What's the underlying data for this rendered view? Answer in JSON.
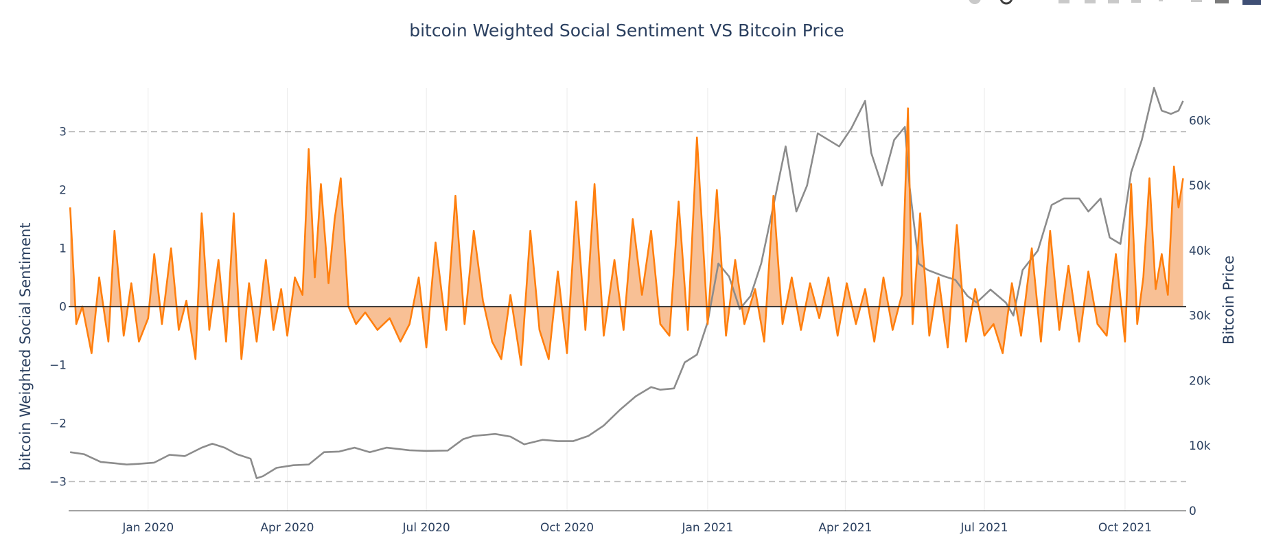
{
  "modebar": {
    "icons": [
      "camera-icon",
      "zoom-icon",
      "pan-icon",
      "zoom-in-icon",
      "zoom-out-icon",
      "autoscale-icon",
      "reset-axes-icon",
      "spike-icon",
      "hover-closest-icon",
      "hover-compare-icon",
      "plotly-logo-icon"
    ]
  },
  "colors": {
    "sentiment_line": "#ff7f0e",
    "sentiment_fill": "#f7b98a",
    "price_line": "#8c8c8c",
    "zero_line": "#2a2a2a",
    "ref_dash": "#bdbdbd",
    "grid": "#ebebeb",
    "text": "#2a3f5f"
  },
  "chart_data": {
    "type": "line",
    "title": "bitcoin Weighted Social Sentiment VS Bitcoin Price",
    "xlabel": "",
    "ylabel": "bitcoin Weighted Social Sentiment",
    "y2label": "Bitcoin Price",
    "x_range": [
      "2019-11-10",
      "2021-11-10"
    ],
    "x_ticks": [
      {
        "date": "2020-01-01",
        "label": "Jan 2020"
      },
      {
        "date": "2020-04-01",
        "label": "Apr 2020"
      },
      {
        "date": "2020-07-01",
        "label": "Jul 2020"
      },
      {
        "date": "2020-10-01",
        "label": "Oct 2020"
      },
      {
        "date": "2021-01-01",
        "label": "Jan 2021"
      },
      {
        "date": "2021-04-01",
        "label": "Apr 2021"
      },
      {
        "date": "2021-07-01",
        "label": "Jul 2021"
      },
      {
        "date": "2021-10-01",
        "label": "Oct 2021"
      }
    ],
    "y_range": [
      -3.5,
      3.75
    ],
    "y_ticks": [
      {
        "value": 3,
        "label": "3"
      },
      {
        "value": 2,
        "label": "2"
      },
      {
        "value": 1,
        "label": "1"
      },
      {
        "value": 0,
        "label": "0"
      },
      {
        "value": -1,
        "label": "−1"
      },
      {
        "value": -2,
        "label": "−2"
      },
      {
        "value": -3,
        "label": "−3"
      }
    ],
    "y2_range": [
      0,
      65000
    ],
    "y2_ticks": [
      {
        "value": 60000,
        "label": "60k"
      },
      {
        "value": 50000,
        "label": "50k"
      },
      {
        "value": 40000,
        "label": "40k"
      },
      {
        "value": 30000,
        "label": "30k"
      },
      {
        "value": 20000,
        "label": "20k"
      },
      {
        "value": 10000,
        "label": "10k"
      },
      {
        "value": 0,
        "label": "0"
      }
    ],
    "reference_lines": [
      3,
      -3
    ],
    "series": [
      {
        "name": "bitcoin Weighted Social Sentiment",
        "axis": "y",
        "fill": "tozeroy",
        "x": [
          "2019-11-11",
          "2019-11-15",
          "2019-11-19",
          "2019-11-25",
          "2019-11-30",
          "2019-12-06",
          "2019-12-10",
          "2019-12-16",
          "2019-12-21",
          "2019-12-26",
          "2020-01-01",
          "2020-01-05",
          "2020-01-10",
          "2020-01-16",
          "2020-01-21",
          "2020-01-26",
          "2020-02-01",
          "2020-02-05",
          "2020-02-10",
          "2020-02-16",
          "2020-02-21",
          "2020-02-26",
          "2020-03-02",
          "2020-03-07",
          "2020-03-12",
          "2020-03-18",
          "2020-03-23",
          "2020-03-28",
          "2020-04-01",
          "2020-04-06",
          "2020-04-11",
          "2020-04-15",
          "2020-04-19",
          "2020-04-23",
          "2020-04-28",
          "2020-05-02",
          "2020-05-06",
          "2020-05-11",
          "2020-05-16",
          "2020-05-22",
          "2020-05-30",
          "2020-06-07",
          "2020-06-14",
          "2020-06-20",
          "2020-06-26",
          "2020-07-01",
          "2020-07-07",
          "2020-07-14",
          "2020-07-20",
          "2020-07-26",
          "2020-08-01",
          "2020-08-07",
          "2020-08-13",
          "2020-08-19",
          "2020-08-25",
          "2020-09-01",
          "2020-09-07",
          "2020-09-13",
          "2020-09-19",
          "2020-09-25",
          "2020-10-01",
          "2020-10-07",
          "2020-10-13",
          "2020-10-19",
          "2020-10-25",
          "2020-11-01",
          "2020-11-07",
          "2020-11-13",
          "2020-11-19",
          "2020-11-25",
          "2020-12-01",
          "2020-12-07",
          "2020-12-13",
          "2020-12-19",
          "2020-12-25",
          "2021-01-01",
          "2021-01-07",
          "2021-01-13",
          "2021-01-19",
          "2021-01-25",
          "2021-02-01",
          "2021-02-07",
          "2021-02-13",
          "2021-02-19",
          "2021-02-25",
          "2021-03-03",
          "2021-03-09",
          "2021-03-15",
          "2021-03-21",
          "2021-03-27",
          "2021-04-02",
          "2021-04-08",
          "2021-04-14",
          "2021-04-20",
          "2021-04-26",
          "2021-05-02",
          "2021-05-08",
          "2021-05-12",
          "2021-05-15",
          "2021-05-20",
          "2021-05-26",
          "2021-06-01",
          "2021-06-07",
          "2021-06-13",
          "2021-06-19",
          "2021-06-25",
          "2021-07-01",
          "2021-07-07",
          "2021-07-13",
          "2021-07-19",
          "2021-07-25",
          "2021-08-01",
          "2021-08-07",
          "2021-08-13",
          "2021-08-19",
          "2021-08-25",
          "2021-09-01",
          "2021-09-07",
          "2021-09-13",
          "2021-09-19",
          "2021-09-25",
          "2021-10-01",
          "2021-10-05",
          "2021-10-09",
          "2021-10-13",
          "2021-10-17",
          "2021-10-21",
          "2021-10-25",
          "2021-10-29",
          "2021-11-02",
          "2021-11-05",
          "2021-11-08"
        ],
        "values": [
          1.7,
          -0.3,
          0.0,
          -0.8,
          0.5,
          -0.6,
          1.3,
          -0.5,
          0.4,
          -0.6,
          -0.2,
          0.9,
          -0.3,
          1.0,
          -0.4,
          0.1,
          -0.9,
          1.6,
          -0.4,
          0.8,
          -0.6,
          1.6,
          -0.9,
          0.4,
          -0.6,
          0.8,
          -0.4,
          0.3,
          -0.5,
          0.5,
          0.2,
          2.7,
          0.5,
          2.1,
          0.4,
          1.5,
          2.2,
          0.0,
          -0.3,
          -0.1,
          -0.4,
          -0.2,
          -0.6,
          -0.3,
          0.5,
          -0.7,
          1.1,
          -0.4,
          1.9,
          -0.3,
          1.3,
          0.1,
          -0.6,
          -0.9,
          0.2,
          -1.0,
          1.3,
          -0.4,
          -0.9,
          0.6,
          -0.8,
          1.8,
          -0.4,
          2.1,
          -0.5,
          0.8,
          -0.4,
          1.5,
          0.2,
          1.3,
          -0.3,
          -0.5,
          1.8,
          -0.4,
          2.9,
          -0.3,
          2.0,
          -0.5,
          0.8,
          -0.3,
          0.3,
          -0.6,
          1.9,
          -0.3,
          0.5,
          -0.4,
          0.4,
          -0.2,
          0.5,
          -0.5,
          0.4,
          -0.3,
          0.3,
          -0.6,
          0.5,
          -0.4,
          0.2,
          3.4,
          -0.3,
          1.6,
          -0.5,
          0.5,
          -0.7,
          1.4,
          -0.6,
          0.3,
          -0.5,
          -0.3,
          -0.8,
          0.4,
          -0.5,
          1.0,
          -0.6,
          1.3,
          -0.4,
          0.7,
          -0.6,
          0.6,
          -0.3,
          -0.5,
          0.9,
          -0.6,
          2.1,
          -0.3,
          0.5,
          2.2,
          0.3,
          0.9,
          0.2,
          2.4,
          1.7,
          2.2
        ]
      },
      {
        "name": "Bitcoin Price",
        "axis": "y2",
        "x": [
          "2019-11-11",
          "2019-11-20",
          "2019-12-01",
          "2019-12-10",
          "2019-12-18",
          "2019-12-25",
          "2020-01-05",
          "2020-01-15",
          "2020-01-25",
          "2020-02-05",
          "2020-02-12",
          "2020-02-20",
          "2020-02-28",
          "2020-03-08",
          "2020-03-12",
          "2020-03-16",
          "2020-03-25",
          "2020-04-05",
          "2020-04-15",
          "2020-04-25",
          "2020-05-05",
          "2020-05-15",
          "2020-05-25",
          "2020-06-05",
          "2020-06-20",
          "2020-07-01",
          "2020-07-15",
          "2020-07-25",
          "2020-08-01",
          "2020-08-15",
          "2020-08-25",
          "2020-09-03",
          "2020-09-15",
          "2020-09-25",
          "2020-10-05",
          "2020-10-15",
          "2020-10-25",
          "2020-11-05",
          "2020-11-15",
          "2020-11-25",
          "2020-12-01",
          "2020-12-10",
          "2020-12-17",
          "2020-12-25",
          "2021-01-01",
          "2021-01-08",
          "2021-01-15",
          "2021-01-22",
          "2021-01-29",
          "2021-02-05",
          "2021-02-14",
          "2021-02-21",
          "2021-02-28",
          "2021-03-07",
          "2021-03-14",
          "2021-03-21",
          "2021-03-28",
          "2021-04-05",
          "2021-04-14",
          "2021-04-18",
          "2021-04-25",
          "2021-05-03",
          "2021-05-10",
          "2021-05-13",
          "2021-05-19",
          "2021-05-25",
          "2021-06-05",
          "2021-06-12",
          "2021-06-20",
          "2021-06-26",
          "2021-07-05",
          "2021-07-15",
          "2021-07-20",
          "2021-07-26",
          "2021-08-05",
          "2021-08-14",
          "2021-08-22",
          "2021-09-01",
          "2021-09-07",
          "2021-09-15",
          "2021-09-21",
          "2021-09-28",
          "2021-10-05",
          "2021-10-12",
          "2021-10-16",
          "2021-10-20",
          "2021-10-25",
          "2021-10-31",
          "2021-11-05",
          "2021-11-08"
        ],
        "values": [
          9000,
          8700,
          7500,
          7300,
          7100,
          7200,
          7400,
          8600,
          8400,
          9700,
          10300,
          9700,
          8700,
          8000,
          5000,
          5300,
          6600,
          7000,
          7100,
          9000,
          9100,
          9700,
          9000,
          9700,
          9300,
          9200,
          9250,
          11000,
          11500,
          11800,
          11400,
          10200,
          10900,
          10700,
          10700,
          11500,
          13100,
          15600,
          17600,
          19000,
          18600,
          18800,
          22800,
          24000,
          29000,
          38000,
          36000,
          31000,
          33000,
          38000,
          48000,
          56000,
          46000,
          50000,
          58000,
          57000,
          56000,
          58800,
          63000,
          55000,
          50000,
          57000,
          59000,
          50000,
          38000,
          37000,
          36000,
          35500,
          33000,
          32000,
          34000,
          32000,
          30000,
          37000,
          40000,
          47000,
          48000,
          48000,
          46000,
          48000,
          42000,
          41000,
          52000,
          57000,
          61000,
          65000,
          61500,
          61000,
          61500,
          63000
        ]
      }
    ]
  }
}
